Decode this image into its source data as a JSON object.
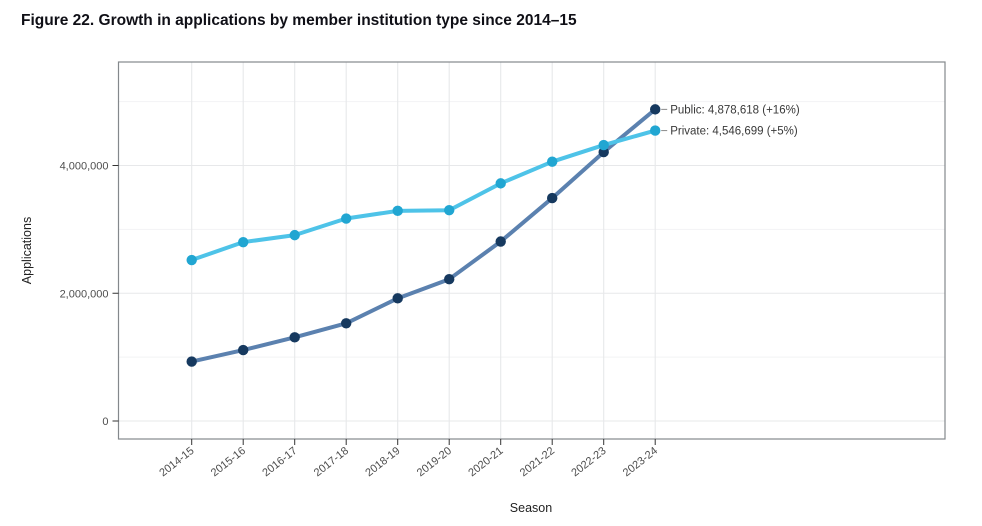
{
  "title": "Figure 22. Growth in applications by member institution type since 2014–15",
  "chart_data": {
    "type": "line",
    "title": "Figure 22. Growth in applications by member institution type since 2014–15",
    "xlabel": "Season",
    "ylabel": "Applications",
    "categories": [
      "2014-15",
      "2015-16",
      "2016-17",
      "2017-18",
      "2018-19",
      "2019-20",
      "2020-21",
      "2021-22",
      "2022-23",
      "2023-24"
    ],
    "series": [
      {
        "name": "Public",
        "values": [
          930000,
          1110000,
          1310000,
          1530000,
          1920000,
          2220000,
          2810000,
          3490000,
          4210000,
          4878618
        ],
        "line_color": "#5b81af",
        "marker_color": "#16395f",
        "end_label": "Public: 4,878,618 (+16%)",
        "final_value_text": "4,878,618",
        "final_growth_text": "+16%"
      },
      {
        "name": "Private",
        "values": [
          2520000,
          2800000,
          2910000,
          3170000,
          3290000,
          3300000,
          3720000,
          4060000,
          4320000,
          4546699
        ],
        "line_color": "#4ec3e8",
        "marker_color": "#21a6d2",
        "end_label": "Private: 4,546,699 (+5%)",
        "final_value_text": "4,546,699",
        "final_growth_text": "+5%"
      }
    ],
    "ylim": [
      0,
      5600000
    ],
    "y_major_ticks": [
      0,
      2000000,
      4000000
    ],
    "y_major_labels": [
      "0",
      "2,000,000",
      "4,000,000"
    ],
    "y_minor_ticks": [
      1000000,
      3000000,
      5000000
    ],
    "grid": true,
    "legend_position": "end-of-line-labels",
    "styles": {
      "grid_major_color": "#e7e8ea",
      "grid_minor_color": "#f2f3f4",
      "panel_border_color": "#84888c",
      "tick_color": "#333333",
      "leader_color": "#8a8a8a"
    }
  }
}
